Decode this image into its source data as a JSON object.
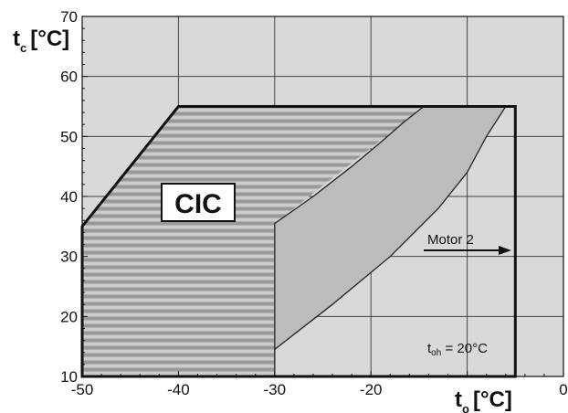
{
  "chart_data": {
    "type": "area",
    "title": "",
    "xaxis": {
      "symbol": "t",
      "subscript": "o",
      "unit": "[°C]",
      "range": [
        -50,
        0
      ],
      "ticks": [
        -50,
        -40,
        -30,
        -20,
        -10,
        0
      ],
      "tick_labels": [
        "-50",
        "-40",
        "-30",
        "-20",
        "",
        "0"
      ]
    },
    "yaxis": {
      "symbol": "t",
      "subscript": "c",
      "unit": "[°C]",
      "range": [
        10,
        70
      ],
      "ticks": [
        10,
        20,
        30,
        40,
        50,
        60,
        70
      ],
      "tick_labels": [
        "10",
        "20",
        "30",
        "40",
        "50",
        "60",
        "70"
      ]
    },
    "grid": true,
    "envelope": {
      "name": "operating envelope",
      "points": [
        [
          -50,
          10
        ],
        [
          -50,
          35
        ],
        [
          -40,
          55
        ],
        [
          -5,
          55
        ],
        [
          -5,
          10
        ]
      ]
    },
    "striped_region": {
      "name": "CIC region",
      "points": [
        [
          -50,
          10
        ],
        [
          -50,
          35
        ],
        [
          -40,
          55
        ],
        [
          -14.5,
          55
        ],
        [
          -30,
          35.5
        ],
        [
          -30,
          10
        ]
      ]
    },
    "shaded_band": {
      "name": "transition band",
      "left_boundary": [
        [
          -30,
          35.5
        ],
        [
          -26,
          40
        ],
        [
          -22,
          45
        ],
        [
          -19,
          49
        ],
        [
          -16.5,
          52.5
        ],
        [
          -14.5,
          55
        ]
      ],
      "right_boundary": [
        [
          -30,
          14.5
        ],
        [
          -24,
          22
        ],
        [
          -18,
          30
        ],
        [
          -13,
          38
        ],
        [
          -10,
          44
        ],
        [
          -8,
          50
        ],
        [
          -6,
          55
        ]
      ]
    },
    "logo": "CIC",
    "annotations": {
      "motor": "Motor 2",
      "toh_symbol": "t",
      "toh_sub": "oh",
      "toh_value": " = 20°C"
    },
    "colors": {
      "background": "#d9d9d9",
      "stripe_dark": "#999999",
      "stripe_light": "#cccccc",
      "band": "#bcbcbc",
      "grid": "#444444",
      "envelope": "#111111"
    }
  }
}
